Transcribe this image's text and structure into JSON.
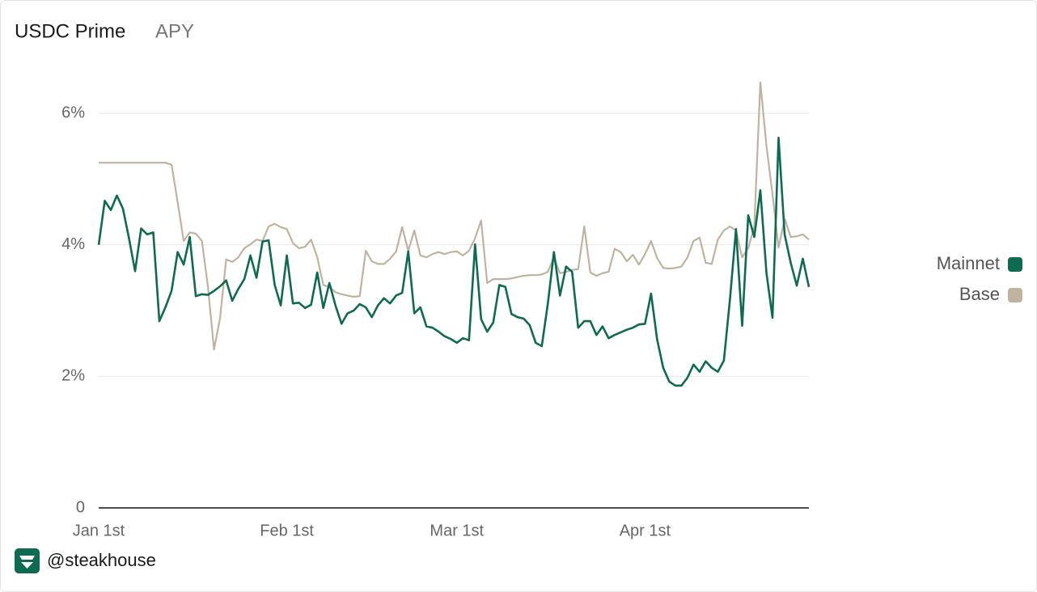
{
  "chart_data": {
    "type": "line",
    "title": "USDC Prime",
    "subtitle": "APY",
    "categories": [
      "Jan 1st",
      null,
      null,
      null,
      null,
      null,
      null,
      null,
      null,
      null,
      null,
      null,
      null,
      null,
      null,
      null,
      null,
      null,
      null,
      null,
      null,
      null,
      null,
      null,
      null,
      null,
      null,
      null,
      null,
      null,
      null,
      "Feb 1st",
      null,
      null,
      null,
      null,
      null,
      null,
      null,
      null,
      null,
      null,
      null,
      null,
      null,
      null,
      null,
      null,
      null,
      null,
      null,
      null,
      null,
      null,
      null,
      null,
      null,
      null,
      null,
      "Mar 1st",
      null,
      null,
      null,
      null,
      null,
      null,
      null,
      null,
      null,
      null,
      null,
      null,
      null,
      null,
      null,
      null,
      null,
      null,
      null,
      null,
      null,
      null,
      null,
      null,
      null,
      null,
      null,
      null,
      null,
      null,
      "Apr 1st",
      null,
      null,
      null,
      null,
      null,
      null,
      null,
      null,
      null,
      null,
      null,
      null,
      null,
      null,
      null,
      null,
      null,
      null,
      null,
      null,
      null,
      null,
      null,
      null,
      null,
      null,
      null
    ],
    "series": [
      {
        "name": "Mainnet",
        "color": "#0e6b52",
        "values": [
          4.0,
          4.67,
          4.53,
          4.75,
          4.55,
          4.1,
          3.6,
          4.25,
          4.16,
          4.19,
          2.84,
          3.05,
          3.3,
          3.89,
          3.7,
          4.12,
          3.22,
          3.25,
          3.24,
          3.3,
          3.37,
          3.46,
          3.15,
          3.33,
          3.48,
          3.84,
          3.5,
          4.05,
          4.07,
          3.39,
          3.08,
          3.84,
          3.11,
          3.12,
          3.04,
          3.09,
          3.58,
          3.04,
          3.42,
          3.08,
          2.8,
          2.96,
          3.0,
          3.1,
          3.05,
          2.9,
          3.08,
          3.19,
          3.11,
          3.23,
          3.27,
          3.9,
          2.96,
          3.05,
          2.76,
          2.74,
          2.68,
          2.61,
          2.57,
          2.51,
          2.58,
          2.55,
          4.01,
          2.87,
          2.68,
          2.82,
          3.39,
          3.36,
          2.95,
          2.9,
          2.88,
          2.78,
          2.51,
          2.46,
          3.11,
          3.89,
          3.23,
          3.67,
          3.59,
          2.74,
          2.84,
          2.84,
          2.63,
          2.76,
          2.58,
          2.63,
          2.67,
          2.71,
          2.74,
          2.79,
          2.8,
          3.26,
          2.56,
          2.13,
          1.92,
          1.86,
          1.86,
          1.98,
          2.18,
          2.07,
          2.23,
          2.13,
          2.07,
          2.24,
          3.17,
          4.24,
          2.77,
          4.45,
          4.12,
          4.83,
          3.58,
          2.89,
          5.63,
          4.16,
          3.73,
          3.38,
          3.79,
          3.36
        ]
      },
      {
        "name": "Base",
        "color": "#bfb39f",
        "values": [
          5.25,
          5.25,
          5.25,
          5.25,
          5.25,
          5.25,
          5.25,
          5.25,
          5.25,
          5.25,
          5.25,
          5.25,
          5.22,
          4.65,
          4.06,
          4.19,
          4.17,
          4.06,
          3.36,
          2.41,
          2.89,
          3.78,
          3.74,
          3.81,
          3.95,
          4.01,
          4.08,
          4.06,
          4.28,
          4.32,
          4.27,
          4.24,
          4.03,
          3.95,
          3.97,
          4.08,
          3.81,
          3.39,
          3.36,
          3.28,
          3.25,
          3.23,
          3.21,
          3.22,
          3.91,
          3.75,
          3.71,
          3.71,
          3.79,
          3.9,
          4.27,
          3.91,
          4.22,
          3.84,
          3.81,
          3.86,
          3.89,
          3.86,
          3.89,
          3.9,
          3.84,
          3.91,
          4.1,
          4.37,
          3.42,
          3.48,
          3.48,
          3.48,
          3.49,
          3.51,
          3.53,
          3.54,
          3.54,
          3.55,
          3.59,
          3.81,
          3.57,
          3.59,
          3.62,
          3.63,
          4.28,
          3.58,
          3.53,
          3.57,
          3.59,
          3.94,
          3.89,
          3.75,
          3.85,
          3.7,
          3.86,
          4.06,
          3.8,
          3.65,
          3.64,
          3.65,
          3.67,
          3.81,
          4.06,
          4.11,
          3.73,
          3.71,
          4.08,
          4.22,
          4.28,
          4.22,
          3.81,
          3.95,
          4.28,
          6.47,
          5.51,
          4.77,
          3.96,
          4.4,
          4.12,
          4.13,
          4.16,
          4.08
        ]
      }
    ],
    "ylim": [
      0,
      6.6
    ],
    "yticks": [
      0,
      {
        "value": 2,
        "label": "2%"
      },
      {
        "value": 4,
        "label": "4%"
      },
      {
        "value": 6,
        "label": "6%"
      }
    ],
    "grid": true,
    "legend": "right"
  },
  "footer": {
    "handle": "@steakhouse"
  }
}
